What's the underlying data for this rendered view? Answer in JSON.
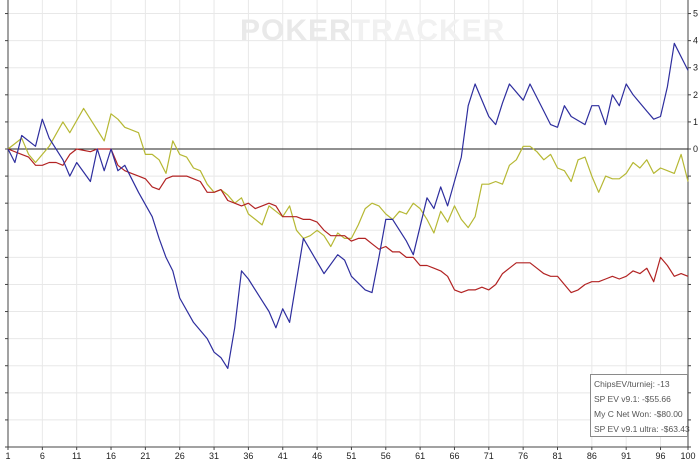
{
  "watermark": {
    "part1": "POKER",
    "part2": "TRACKER"
  },
  "legend": [
    "ChipsEV/turniej: -13",
    "SP EV v9.1: -$55.66",
    "My C Net Won: -$80.00",
    "SP EV v9.1 ultra: -$63.43"
  ],
  "chart_data": {
    "type": "line",
    "title": "",
    "xlabel": "",
    "ylabel": "",
    "x_ticks": [
      1,
      6,
      11,
      16,
      21,
      26,
      31,
      36,
      41,
      46,
      51,
      56,
      61,
      66,
      71,
      76,
      81,
      86,
      91,
      96,
      100
    ],
    "y_ticks": [
      5,
      4,
      3,
      2,
      1,
      0
    ],
    "xlim": [
      1,
      100
    ],
    "ylim": [
      -11,
      5.5
    ],
    "grid": true,
    "legend_position": "bottom-right",
    "colors": {
      "blue": "#2e2e9e",
      "olive": "#b6b834",
      "red": "#b22323",
      "zero": "#222222",
      "grid": "#e8e8e8"
    },
    "series": [
      {
        "color": "#2e2e9e",
        "points": [
          [
            1,
            0
          ],
          [
            2,
            -0.5
          ],
          [
            3,
            0.5
          ],
          [
            5,
            0.1
          ],
          [
            6,
            1.1
          ],
          [
            7,
            0.4
          ],
          [
            9,
            -0.4
          ],
          [
            10,
            -1.0
          ],
          [
            11,
            -0.5
          ],
          [
            13,
            -1.2
          ],
          [
            14,
            0
          ],
          [
            15,
            -0.8
          ],
          [
            16,
            0
          ],
          [
            17,
            -0.8
          ],
          [
            18,
            -0.6
          ],
          [
            20,
            -1.6
          ],
          [
            22,
            -2.5
          ],
          [
            23,
            -3.3
          ],
          [
            24,
            -4.0
          ],
          [
            25,
            -4.5
          ],
          [
            26,
            -5.5
          ],
          [
            28,
            -6.4
          ],
          [
            30,
            -7.0
          ],
          [
            31,
            -7.5
          ],
          [
            32,
            -7.7
          ],
          [
            33,
            -8.1
          ],
          [
            34,
            -6.6
          ],
          [
            35,
            -4.5
          ],
          [
            36,
            -4.8
          ],
          [
            38,
            -5.6
          ],
          [
            39,
            -6.0
          ],
          [
            40,
            -6.6
          ],
          [
            41,
            -5.9
          ],
          [
            42,
            -6.4
          ],
          [
            44,
            -3.3
          ],
          [
            47,
            -4.6
          ],
          [
            49,
            -3.9
          ],
          [
            50,
            -4.1
          ],
          [
            51,
            -4.7
          ],
          [
            53,
            -5.2
          ],
          [
            54,
            -5.3
          ],
          [
            55,
            -4.0
          ],
          [
            56,
            -2.6
          ],
          [
            57,
            -2.6
          ],
          [
            59,
            -3.4
          ],
          [
            60,
            -3.9
          ],
          [
            62,
            -1.8
          ],
          [
            63,
            -2.2
          ],
          [
            64,
            -1.4
          ],
          [
            65,
            -2.1
          ],
          [
            67,
            -0.3
          ],
          [
            68,
            1.6
          ],
          [
            69,
            2.4
          ],
          [
            71,
            1.2
          ],
          [
            72,
            0.9
          ],
          [
            73,
            1.7
          ],
          [
            74,
            2.4
          ],
          [
            76,
            1.8
          ],
          [
            77,
            2.4
          ],
          [
            79,
            1.4
          ],
          [
            80,
            0.9
          ],
          [
            81,
            0.8
          ],
          [
            82,
            1.6
          ],
          [
            83,
            1.2
          ],
          [
            85,
            0.9
          ],
          [
            86,
            1.6
          ],
          [
            87,
            1.6
          ],
          [
            88,
            0.9
          ],
          [
            89,
            2.0
          ],
          [
            90,
            1.6
          ],
          [
            91,
            2.4
          ],
          [
            92,
            2.0
          ],
          [
            94,
            1.4
          ],
          [
            95,
            1.1
          ],
          [
            96,
            1.2
          ],
          [
            97,
            2.3
          ],
          [
            98,
            3.9
          ],
          [
            100,
            2.9
          ]
        ]
      },
      {
        "color": "#b6b834",
        "points": [
          [
            1,
            0
          ],
          [
            2,
            0.2
          ],
          [
            3,
            0.4
          ],
          [
            4,
            -0.2
          ],
          [
            5,
            -0.5
          ],
          [
            7,
            0.1
          ],
          [
            9,
            1.0
          ],
          [
            10,
            0.6
          ],
          [
            12,
            1.5
          ],
          [
            14,
            0.7
          ],
          [
            15,
            0.3
          ],
          [
            16,
            1.3
          ],
          [
            17,
            1.1
          ],
          [
            18,
            0.8
          ],
          [
            20,
            0.6
          ],
          [
            21,
            -0.2
          ],
          [
            22,
            -0.2
          ],
          [
            23,
            -0.4
          ],
          [
            24,
            -0.9
          ],
          [
            25,
            0.3
          ],
          [
            26,
            -0.2
          ],
          [
            27,
            -0.3
          ],
          [
            28,
            -0.7
          ],
          [
            29,
            -0.8
          ],
          [
            30,
            -1.3
          ],
          [
            31,
            -1.6
          ],
          [
            32,
            -1.5
          ],
          [
            33,
            -1.7
          ],
          [
            34,
            -2.0
          ],
          [
            35,
            -1.8
          ],
          [
            36,
            -2.4
          ],
          [
            37,
            -2.6
          ],
          [
            38,
            -2.8
          ],
          [
            39,
            -2.1
          ],
          [
            40,
            -2.3
          ],
          [
            41,
            -2.5
          ],
          [
            42,
            -2.1
          ],
          [
            43,
            -3.0
          ],
          [
            44,
            -3.3
          ],
          [
            45,
            -3.2
          ],
          [
            46,
            -3.0
          ],
          [
            47,
            -3.2
          ],
          [
            48,
            -3.6
          ],
          [
            49,
            -3.1
          ],
          [
            50,
            -3.3
          ],
          [
            51,
            -3.3
          ],
          [
            52,
            -2.8
          ],
          [
            53,
            -2.2
          ],
          [
            54,
            -2.0
          ],
          [
            55,
            -2.1
          ],
          [
            56,
            -2.4
          ],
          [
            57,
            -2.6
          ],
          [
            58,
            -2.3
          ],
          [
            59,
            -2.4
          ],
          [
            60,
            -2.0
          ],
          [
            61,
            -2.2
          ],
          [
            62,
            -2.6
          ],
          [
            63,
            -3.1
          ],
          [
            64,
            -2.3
          ],
          [
            65,
            -2.7
          ],
          [
            66,
            -2.1
          ],
          [
            67,
            -2.6
          ],
          [
            68,
            -2.9
          ],
          [
            69,
            -2.5
          ],
          [
            70,
            -1.3
          ],
          [
            71,
            -1.3
          ],
          [
            72,
            -1.2
          ],
          [
            73,
            -1.3
          ],
          [
            74,
            -0.6
          ],
          [
            75,
            -0.4
          ],
          [
            76,
            0.1
          ],
          [
            77,
            0.1
          ],
          [
            78,
            -0.1
          ],
          [
            79,
            -0.4
          ],
          [
            80,
            -0.2
          ],
          [
            81,
            -0.7
          ],
          [
            82,
            -0.8
          ],
          [
            83,
            -1.2
          ],
          [
            84,
            -0.4
          ],
          [
            85,
            -0.3
          ],
          [
            86,
            -1.0
          ],
          [
            87,
            -1.6
          ],
          [
            88,
            -1.0
          ],
          [
            89,
            -1.1
          ],
          [
            90,
            -1.1
          ],
          [
            91,
            -0.9
          ],
          [
            92,
            -0.5
          ],
          [
            93,
            -0.7
          ],
          [
            94,
            -0.4
          ],
          [
            95,
            -0.9
          ],
          [
            96,
            -0.7
          ],
          [
            97,
            -0.8
          ],
          [
            98,
            -0.9
          ],
          [
            99,
            -0.2
          ],
          [
            100,
            -1.2
          ]
        ]
      },
      {
        "color": "#b22323",
        "points": [
          [
            1,
            0
          ],
          [
            3,
            -0.2
          ],
          [
            4,
            -0.3
          ],
          [
            5,
            -0.6
          ],
          [
            6,
            -0.6
          ],
          [
            7,
            -0.5
          ],
          [
            8,
            -0.5
          ],
          [
            9,
            -0.6
          ],
          [
            10,
            -0.2
          ],
          [
            11,
            0
          ],
          [
            13,
            -0.1
          ],
          [
            14,
            0
          ],
          [
            16,
            0
          ],
          [
            17,
            -0.6
          ],
          [
            18,
            -0.8
          ],
          [
            19,
            -0.9
          ],
          [
            20,
            -1.0
          ],
          [
            21,
            -1.1
          ],
          [
            22,
            -1.4
          ],
          [
            23,
            -1.5
          ],
          [
            24,
            -1.1
          ],
          [
            25,
            -1.0
          ],
          [
            27,
            -1.0
          ],
          [
            28,
            -1.1
          ],
          [
            29,
            -1.2
          ],
          [
            30,
            -1.6
          ],
          [
            31,
            -1.6
          ],
          [
            32,
            -1.5
          ],
          [
            33,
            -1.9
          ],
          [
            34,
            -2.0
          ],
          [
            35,
            -2.1
          ],
          [
            36,
            -2.0
          ],
          [
            37,
            -2.2
          ],
          [
            38,
            -2.1
          ],
          [
            39,
            -2.0
          ],
          [
            40,
            -2.1
          ],
          [
            41,
            -2.5
          ],
          [
            42,
            -2.5
          ],
          [
            43,
            -2.5
          ],
          [
            44,
            -2.6
          ],
          [
            45,
            -2.6
          ],
          [
            46,
            -2.7
          ],
          [
            47,
            -3.0
          ],
          [
            48,
            -3.2
          ],
          [
            49,
            -3.2
          ],
          [
            50,
            -3.2
          ],
          [
            51,
            -3.4
          ],
          [
            52,
            -3.3
          ],
          [
            53,
            -3.3
          ],
          [
            54,
            -3.5
          ],
          [
            55,
            -3.7
          ],
          [
            56,
            -3.6
          ],
          [
            57,
            -3.8
          ],
          [
            58,
            -3.8
          ],
          [
            59,
            -4.0
          ],
          [
            60,
            -4.0
          ],
          [
            61,
            -4.3
          ],
          [
            62,
            -4.3
          ],
          [
            63,
            -4.4
          ],
          [
            64,
            -4.5
          ],
          [
            65,
            -4.7
          ],
          [
            66,
            -5.2
          ],
          [
            67,
            -5.3
          ],
          [
            68,
            -5.2
          ],
          [
            69,
            -5.2
          ],
          [
            70,
            -5.1
          ],
          [
            71,
            -5.2
          ],
          [
            72,
            -5.0
          ],
          [
            73,
            -4.6
          ],
          [
            74,
            -4.4
          ],
          [
            75,
            -4.2
          ],
          [
            76,
            -4.2
          ],
          [
            77,
            -4.2
          ],
          [
            78,
            -4.4
          ],
          [
            79,
            -4.6
          ],
          [
            80,
            -4.7
          ],
          [
            81,
            -4.7
          ],
          [
            82,
            -5.0
          ],
          [
            83,
            -5.3
          ],
          [
            84,
            -5.2
          ],
          [
            85,
            -5.0
          ],
          [
            86,
            -4.9
          ],
          [
            87,
            -4.9
          ],
          [
            88,
            -4.8
          ],
          [
            89,
            -4.7
          ],
          [
            90,
            -4.8
          ],
          [
            91,
            -4.7
          ],
          [
            92,
            -4.5
          ],
          [
            93,
            -4.6
          ],
          [
            94,
            -4.4
          ],
          [
            95,
            -4.9
          ],
          [
            96,
            -4.0
          ],
          [
            97,
            -4.3
          ],
          [
            98,
            -4.7
          ],
          [
            99,
            -4.6
          ],
          [
            100,
            -4.7
          ]
        ]
      }
    ]
  }
}
